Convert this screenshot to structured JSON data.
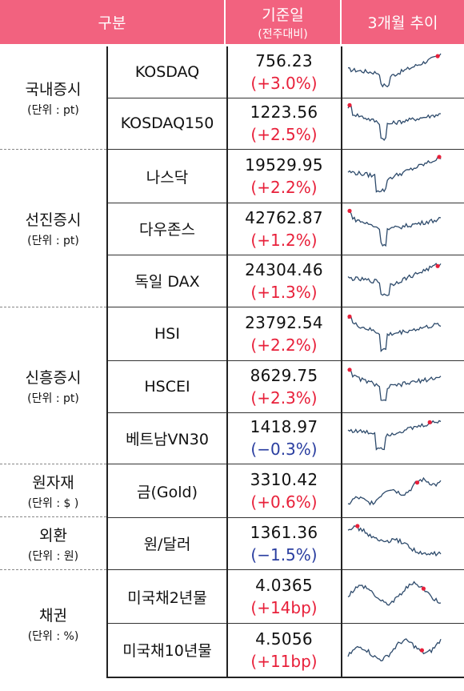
{
  "header": {
    "col_category": "구분",
    "col_value": "기준일",
    "col_value_sub": "(전주대비)",
    "col_trend": "3개월 추이",
    "bg_color": "#f2627f"
  },
  "categories": [
    {
      "label": "국내증시",
      "unit": "(단위 : pt)"
    },
    {
      "label": "선진증시",
      "unit": "(단위 : pt)"
    },
    {
      "label": "신흥증시",
      "unit": "(단위 : pt)"
    },
    {
      "label": "원자재",
      "unit": "(단위 : $ )"
    },
    {
      "label": "외환",
      "unit": "(단위 : 원)"
    },
    {
      "label": "채권",
      "unit": "(단위 : %)"
    }
  ],
  "rows": [
    {
      "name": "KOSDAQ",
      "value": "756.23",
      "change": "(+3.0%)",
      "direction": "up",
      "shape": "v_recover"
    },
    {
      "name": "KOSDAQ150",
      "value": "1223.56",
      "change": "(+2.5%)",
      "direction": "up",
      "shape": "v_start_high"
    },
    {
      "name": "나스닥",
      "value": "19529.95",
      "change": "(+2.2%)",
      "direction": "up",
      "shape": "v_recover_high"
    },
    {
      "name": "다우존스",
      "value": "42762.87",
      "change": "(+1.2%)",
      "direction": "up",
      "shape": "v_start_high"
    },
    {
      "name": "독일 DAX",
      "value": "24304.46",
      "change": "(+1.3%)",
      "direction": "up",
      "shape": "v_recover"
    },
    {
      "name": "HSI",
      "value": "23792.54",
      "change": "(+2.2%)",
      "direction": "up",
      "shape": "v_start_high"
    },
    {
      "name": "HSCEI",
      "value": "8629.75",
      "change": "(+2.3%)",
      "direction": "up",
      "shape": "v_start_high"
    },
    {
      "name": "베트남VN30",
      "value": "1418.97",
      "change": "(−0.3%)",
      "direction": "down",
      "shape": "v_late_high"
    },
    {
      "name": "금(Gold)",
      "value": "3310.42",
      "change": "(+0.6%)",
      "direction": "up",
      "shape": "rise_choppy"
    },
    {
      "name": "원/달러",
      "value": "1361.36",
      "change": "(−1.5%)",
      "direction": "down",
      "shape": "decline"
    },
    {
      "name": "미국채2년물",
      "value": "4.0365",
      "change": "(+14bp)",
      "direction": "up",
      "shape": "choppy"
    },
    {
      "name": "미국채10년물",
      "value": "4.5056",
      "change": "(+11bp)",
      "direction": "up",
      "shape": "choppy_rise"
    }
  ],
  "colors": {
    "up": "#e8203a",
    "down": "#2a3ea0",
    "line": "#2d4a6b",
    "marker": "#e8203a"
  }
}
